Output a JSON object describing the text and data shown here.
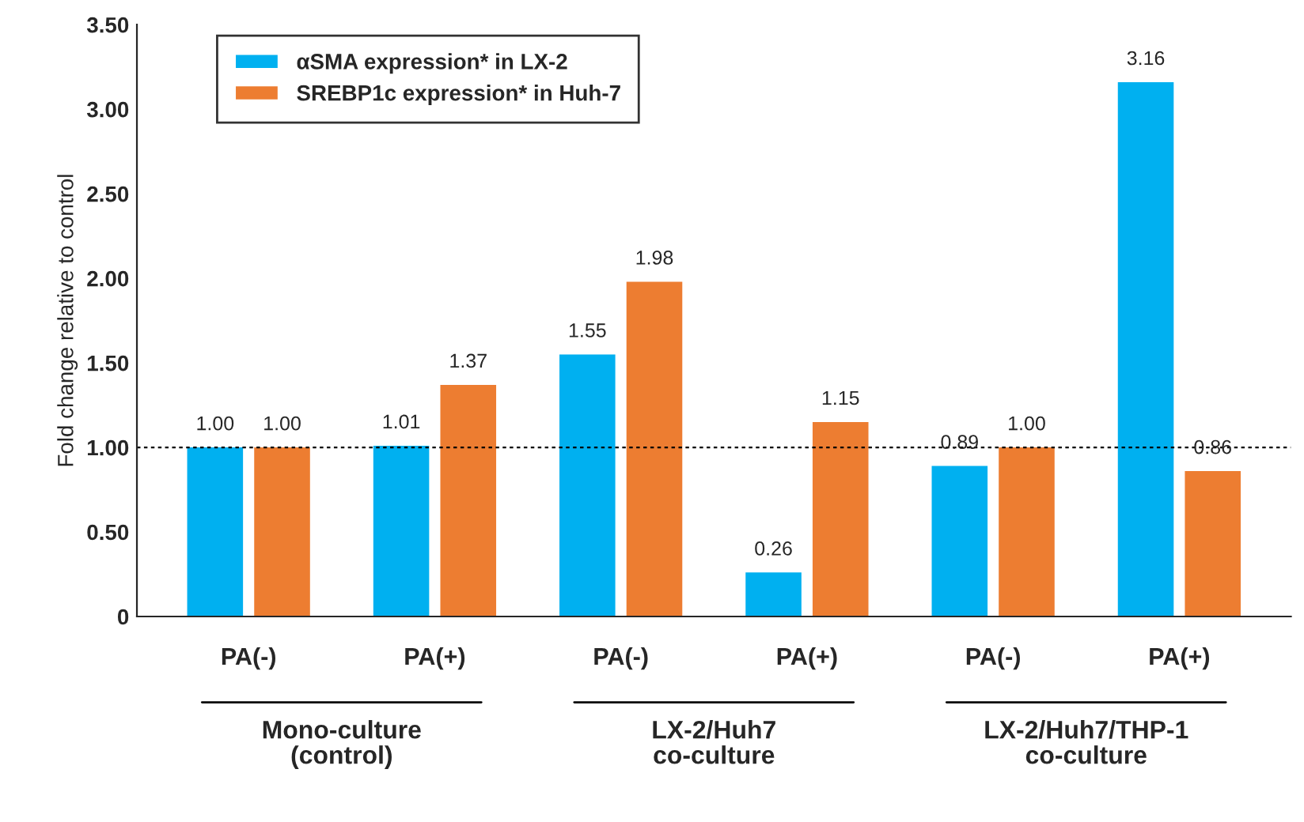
{
  "chart_data": {
    "type": "bar",
    "categories": [
      "PA(-)",
      "PA(+)",
      "PA(-)",
      "PA(+)",
      "PA(-)",
      "PA(+)"
    ],
    "ylabel": "Fold change relative to control",
    "series": [
      {
        "name": "αSMA expression* in LX-2",
        "color": "#00b0f0",
        "values": [
          1.0,
          1.01,
          1.55,
          0.26,
          0.89,
          3.16
        ],
        "value_labels": [
          "1.00",
          "1.01",
          "1.55",
          "0.26",
          "0.89",
          "3.16"
        ]
      },
      {
        "name": "SREBP1c expression* in Huh-7",
        "color": "#ed7d31",
        "values": [
          1.0,
          1.37,
          1.98,
          1.15,
          1.0,
          0.86
        ],
        "value_labels": [
          "1.00",
          "1.37",
          "1.98",
          "1.15",
          "1.00",
          "0.86"
        ]
      }
    ],
    "ylim": [
      0,
      3.5
    ],
    "yticks": [
      0,
      {
        "value": 0.5,
        "label": "0.50"
      },
      {
        "value": 1.0,
        "label": "1.00"
      },
      {
        "value": 1.5,
        "label": "1.50"
      },
      {
        "value": 2.0,
        "label": "2.00"
      },
      {
        "value": 2.5,
        "label": "2.50"
      },
      {
        "value": 3.0,
        "label": "3.00"
      },
      {
        "value": 3.5,
        "label": "3.50"
      }
    ],
    "ref_lines": [
      {
        "axis": "y",
        "value": 1.0,
        "color": "#000000",
        "line_style": "dotted"
      }
    ],
    "annotations": [
      "Mono-culture\n(control)",
      "LX-2/Huh7\nco-culture",
      "LX-2/Huh7/THP-1\nco-culture"
    ],
    "legend": "top left",
    "grid": false
  }
}
